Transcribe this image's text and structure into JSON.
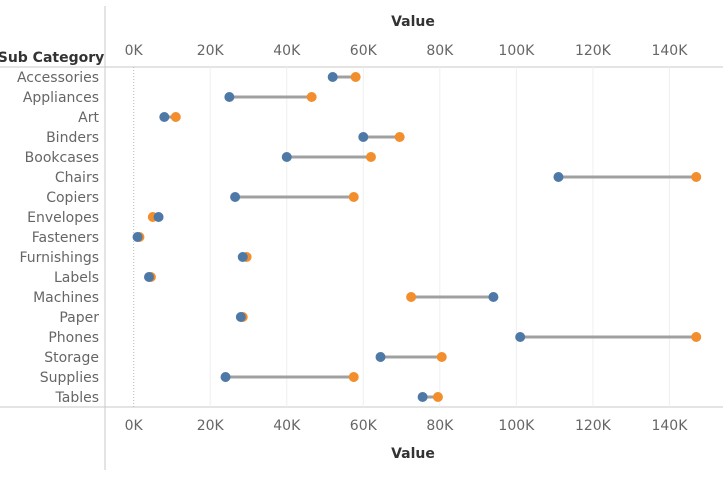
{
  "chart_data": {
    "type": "dumbbell",
    "row_header": "Sub Category",
    "xlabel": "Value",
    "xlim": [
      -7500,
      154000
    ],
    "x_ticks": [
      {
        "value": 0,
        "label": "0K"
      },
      {
        "value": 20000,
        "label": "20K"
      },
      {
        "value": 40000,
        "label": "40K"
      },
      {
        "value": 60000,
        "label": "60K"
      },
      {
        "value": 80000,
        "label": "80K"
      },
      {
        "value": 100000,
        "label": "100K"
      },
      {
        "value": 120000,
        "label": "120K"
      },
      {
        "value": 140000,
        "label": "140K"
      }
    ],
    "categories": [
      "Accessories",
      "Appliances",
      "Art",
      "Binders",
      "Bookcases",
      "Chairs",
      "Copiers",
      "Envelopes",
      "Fasteners",
      "Furnishings",
      "Labels",
      "Machines",
      "Paper",
      "Phones",
      "Storage",
      "Supplies",
      "Tables"
    ],
    "series": [
      {
        "color": "#4e79a7",
        "values": [
          52000,
          25000,
          8000,
          60000,
          40000,
          111000,
          26500,
          6500,
          1000,
          28500,
          4000,
          94000,
          28000,
          101000,
          64500,
          24000,
          75500
        ]
      },
      {
        "color": "#f28e2b",
        "values": [
          58000,
          46500,
          11000,
          69500,
          62000,
          147000,
          57500,
          5000,
          1500,
          29500,
          4500,
          72500,
          28500,
          147000,
          80500,
          57500,
          79500
        ]
      }
    ],
    "connector_color": "#a0a0a0",
    "grid": true,
    "zero_line": "dotted"
  }
}
